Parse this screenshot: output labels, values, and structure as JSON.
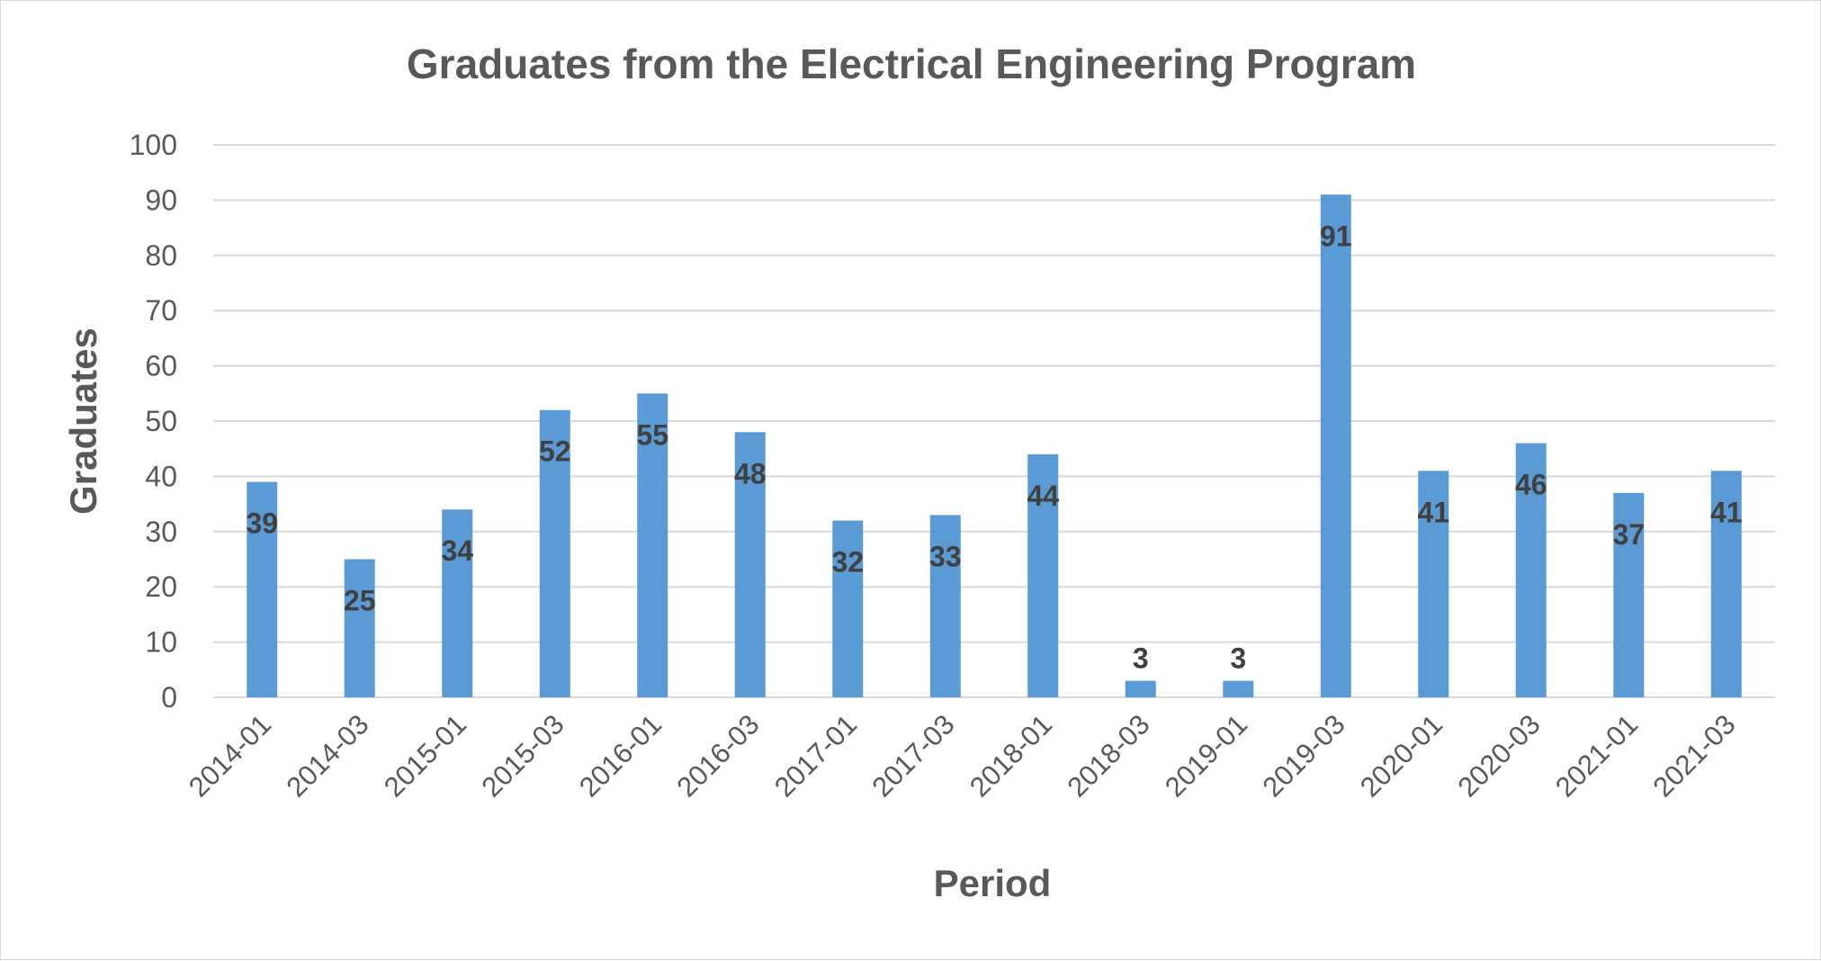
{
  "chart_data": {
    "type": "bar",
    "title": "Graduates from the Electrical Engineering Program",
    "xlabel": "Period",
    "ylabel": "Graduates",
    "categories": [
      "2014-01",
      "2014-03",
      "2015-01",
      "2015-03",
      "2016-01",
      "2016-03",
      "2017-01",
      "2017-03",
      "2018-01",
      "2018-03",
      "2019-01",
      "2019-03",
      "2020-01",
      "2020-03",
      "2021-01",
      "2021-03"
    ],
    "values": [
      39,
      25,
      34,
      52,
      55,
      48,
      32,
      33,
      44,
      3,
      3,
      91,
      41,
      46,
      37,
      41
    ],
    "ylim": [
      0,
      100
    ],
    "yticks": [
      0,
      10,
      20,
      30,
      40,
      50,
      60,
      70,
      80,
      90,
      100
    ],
    "grid": true,
    "legend": "none",
    "data_labels": true,
    "bar_color": "#5b9bd5"
  }
}
